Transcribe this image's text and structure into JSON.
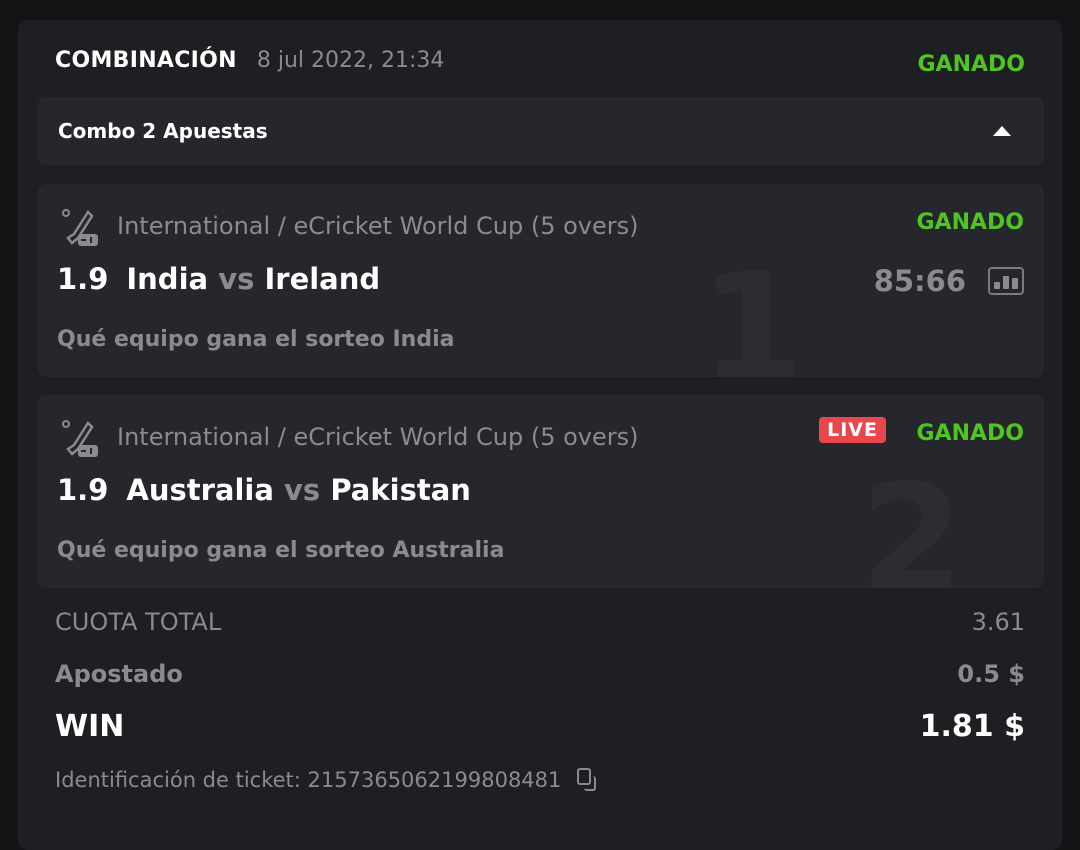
{
  "header": {
    "title": "COMBINACIÓN",
    "date": "8 jul 2022, 21:34",
    "status": "GANADO"
  },
  "combo": {
    "label": "Combo 2 Apuestas",
    "toggle_icon": "caret-up-icon"
  },
  "legs": [
    {
      "number": "1",
      "tournament": "International / eCricket World Cup (5 overs)",
      "status": "GANADO",
      "odd": "1.9",
      "home": "India",
      "vs": "vs",
      "away": "Ireland",
      "score": "85:66",
      "pick": "Qué equipo gana el sorteo India",
      "live": null
    },
    {
      "number": "2",
      "tournament": "International / eCricket World Cup (5 overs)",
      "status": "GANADO",
      "odd": "1.9",
      "home": "Australia",
      "vs": "vs",
      "away": "Pakistan",
      "score": null,
      "pick": "Qué equipo gana el sorteo Australia",
      "live": "LIVE"
    }
  ],
  "summary": {
    "total_odds_label": "CUOTA TOTAL",
    "total_odds": "3.61",
    "stake_label": "Apostado",
    "stake": "0.5 $",
    "win_label": "WIN",
    "win": "1.81 $"
  },
  "ticket": {
    "label": "Identificación de ticket: 215736506219980848​1"
  },
  "colors": {
    "won": "#4fc520",
    "live": "#e8474b",
    "card": "#1e1f23",
    "leg": "#26272c"
  }
}
